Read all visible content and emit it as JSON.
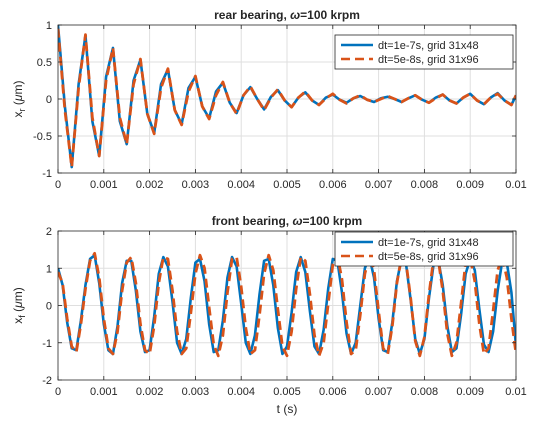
{
  "chart_data": [
    {
      "type": "line",
      "title_prefix": "rear bearing, ",
      "title_symbol": "ω",
      "title_suffix": "=100 krpm",
      "xlabel": "",
      "ylabel_main": "x",
      "ylabel_sub": "r",
      "ylabel_unit_open": " (",
      "ylabel_unit_mu": "μ",
      "ylabel_unit_rest": "m)",
      "xlim": [
        0,
        0.01
      ],
      "ylim": [
        -1,
        1
      ],
      "xticks": [
        0,
        0.001,
        0.002,
        0.003,
        0.004,
        0.005,
        0.006,
        0.007,
        0.008,
        0.009,
        0.01
      ],
      "xtick_labels": [
        "0",
        "0.001",
        "0.002",
        "0.003",
        "0.004",
        "0.005",
        "0.006",
        "0.007",
        "0.008",
        "0.009",
        "0.01"
      ],
      "yticks": [
        -1,
        -0.5,
        0,
        0.5,
        1
      ],
      "ytick_labels": [
        "-1",
        "-0.5",
        "0",
        "0.5",
        "1"
      ],
      "grid": true,
      "legend_position": "top-right",
      "series": [
        {
          "name": "dt=1e-7s, grid 31x48",
          "style": "solid",
          "color": "#0072BD",
          "x": [
            0,
            0.00015,
            0.0003,
            0.00045,
            0.0006,
            0.00075,
            0.0009,
            0.00105,
            0.0012,
            0.00135,
            0.0015,
            0.00165,
            0.0018,
            0.00195,
            0.0021,
            0.00225,
            0.0024,
            0.00255,
            0.0027,
            0.00285,
            0.003,
            0.00315,
            0.0033,
            0.00345,
            0.0036,
            0.00375,
            0.0039,
            0.00405,
            0.0042,
            0.00435,
            0.0045,
            0.00465,
            0.0048,
            0.00495,
            0.0051,
            0.00525,
            0.0054,
            0.00555,
            0.0057,
            0.00585,
            0.006,
            0.00615,
            0.0063,
            0.00645,
            0.0066,
            0.00675,
            0.0069,
            0.00705,
            0.0072,
            0.00735,
            0.0075,
            0.00765,
            0.0078,
            0.00795,
            0.0081,
            0.00825,
            0.0084,
            0.00855,
            0.0087,
            0.00885,
            0.009,
            0.00915,
            0.0093,
            0.00945,
            0.0096,
            0.00975,
            0.0099,
            0.01
          ],
          "y": [
            1.0,
            -0.1,
            -0.92,
            0.2,
            0.86,
            -0.3,
            -0.77,
            0.3,
            0.69,
            -0.3,
            -0.61,
            0.25,
            0.53,
            -0.2,
            -0.46,
            0.2,
            0.4,
            -0.15,
            -0.34,
            0.15,
            0.3,
            -0.1,
            -0.26,
            0.1,
            0.22,
            -0.05,
            -0.19,
            0.05,
            0.16,
            0.0,
            -0.14,
            0.03,
            0.12,
            -0.02,
            -0.11,
            0.02,
            0.09,
            -0.02,
            -0.08,
            0.02,
            0.06,
            -0.01,
            -0.05,
            0.01,
            0.04,
            -0.01,
            -0.04,
            0.01,
            0.03,
            0.0,
            -0.04,
            0.01,
            0.05,
            -0.01,
            -0.05,
            0.02,
            0.06,
            -0.02,
            -0.06,
            0.02,
            0.07,
            -0.02,
            -0.07,
            0.02,
            0.08,
            -0.02,
            -0.08,
            0.05
          ]
        },
        {
          "name": "dt=5e-8s, grid 31x96",
          "style": "dashed",
          "color": "#D95319",
          "x": [
            0,
            0.00015,
            0.0003,
            0.00045,
            0.0006,
            0.00075,
            0.0009,
            0.00105,
            0.0012,
            0.00135,
            0.0015,
            0.00165,
            0.0018,
            0.00195,
            0.0021,
            0.00225,
            0.0024,
            0.00255,
            0.0027,
            0.00285,
            0.003,
            0.00315,
            0.0033,
            0.00345,
            0.0036,
            0.00375,
            0.0039,
            0.00405,
            0.0042,
            0.00435,
            0.0045,
            0.00465,
            0.0048,
            0.00495,
            0.0051,
            0.00525,
            0.0054,
            0.00555,
            0.0057,
            0.00585,
            0.006,
            0.00615,
            0.0063,
            0.00645,
            0.0066,
            0.00675,
            0.0069,
            0.00705,
            0.0072,
            0.00735,
            0.0075,
            0.00765,
            0.0078,
            0.00795,
            0.0081,
            0.00825,
            0.0084,
            0.00855,
            0.0087,
            0.00885,
            0.009,
            0.00915,
            0.0093,
            0.00945,
            0.0096,
            0.00975,
            0.0099,
            0.01
          ],
          "y": [
            0.95,
            -0.15,
            -0.92,
            0.15,
            0.87,
            -0.25,
            -0.77,
            0.25,
            0.69,
            -0.25,
            -0.61,
            0.2,
            0.54,
            -0.2,
            -0.47,
            0.15,
            0.41,
            -0.15,
            -0.35,
            0.1,
            0.31,
            -0.1,
            -0.27,
            0.05,
            0.23,
            -0.05,
            -0.2,
            0.05,
            0.17,
            0.0,
            -0.15,
            0.02,
            0.13,
            -0.02,
            -0.11,
            0.02,
            0.1,
            -0.02,
            -0.08,
            0.01,
            0.07,
            -0.01,
            -0.06,
            0.01,
            0.05,
            -0.01,
            -0.04,
            0.0,
            0.04,
            0.0,
            -0.04,
            0.01,
            0.05,
            -0.01,
            -0.05,
            0.01,
            0.06,
            -0.02,
            -0.06,
            0.02,
            0.07,
            -0.02,
            -0.07,
            0.02,
            0.07,
            -0.02,
            -0.08,
            0.05
          ]
        }
      ]
    },
    {
      "type": "line",
      "title_prefix": "front bearing, ",
      "title_symbol": "ω",
      "title_suffix": "=100 krpm",
      "xlabel": "t (s)",
      "ylabel_main": "x",
      "ylabel_sub": "f",
      "ylabel_unit_open": " (",
      "ylabel_unit_mu": "μ",
      "ylabel_unit_rest": "m)",
      "xlim": [
        0,
        0.01
      ],
      "ylim": [
        -2,
        2
      ],
      "xticks": [
        0,
        0.001,
        0.002,
        0.003,
        0.004,
        0.005,
        0.006,
        0.007,
        0.008,
        0.009,
        0.01
      ],
      "xtick_labels": [
        "0",
        "0.001",
        "0.002",
        "0.003",
        "0.004",
        "0.005",
        "0.006",
        "0.007",
        "0.008",
        "0.009",
        "0.01"
      ],
      "yticks": [
        -2,
        -1,
        0,
        1,
        2
      ],
      "ytick_labels": [
        "-2",
        "-1",
        "0",
        "1",
        "2"
      ],
      "grid": true,
      "legend_position": "top-right",
      "series": [
        {
          "name": "dt=1e-7s, grid 31x48",
          "style": "solid",
          "color": "#0072BD",
          "x": [
            0,
            0.0001,
            0.0002,
            0.0003,
            0.0004,
            0.0005,
            0.0006,
            0.0007,
            0.0008,
            0.0009,
            0.001,
            0.0011,
            0.0012,
            0.0013,
            0.0014,
            0.0015,
            0.0016,
            0.0017,
            0.0018,
            0.0019,
            0.002,
            0.0021,
            0.0022,
            0.0023,
            0.0024,
            0.0025,
            0.0026,
            0.0027,
            0.0028,
            0.0029,
            0.003,
            0.0031,
            0.0032,
            0.0033,
            0.0034,
            0.0035,
            0.0036,
            0.0037,
            0.0038,
            0.0039,
            0.004,
            0.0041,
            0.0042,
            0.0043,
            0.0044,
            0.0045,
            0.0046,
            0.0047,
            0.0048,
            0.0049,
            0.005,
            0.0051,
            0.0052,
            0.0053,
            0.0054,
            0.0055,
            0.0056,
            0.0057,
            0.0058,
            0.0059,
            0.006,
            0.0061,
            0.0062,
            0.0063,
            0.0064,
            0.0065,
            0.0066,
            0.0067,
            0.0068,
            0.0069,
            0.007,
            0.0071,
            0.0072,
            0.0073,
            0.0074,
            0.0075,
            0.0076,
            0.0077,
            0.0078,
            0.0079,
            0.008,
            0.0081,
            0.0082,
            0.0083,
            0.0084,
            0.0085,
            0.0086,
            0.0087,
            0.0088,
            0.0089,
            0.009,
            0.0091,
            0.0092,
            0.0093,
            0.0094,
            0.0095,
            0.0096,
            0.0097,
            0.0098,
            0.0099,
            0.01
          ],
          "y": [
            1.0,
            0.55,
            -0.45,
            -1.15,
            -1.2,
            -0.4,
            0.55,
            1.25,
            1.35,
            0.6,
            -0.5,
            -1.2,
            -1.3,
            -0.55,
            0.6,
            1.2,
            1.2,
            0.4,
            -0.7,
            -1.25,
            -1.2,
            -0.3,
            0.85,
            1.3,
            1.05,
            0.1,
            -1.0,
            -1.3,
            -0.9,
            0.2,
            1.15,
            1.25,
            0.65,
            -0.5,
            -1.25,
            -1.2,
            -0.4,
            0.75,
            1.3,
            1.05,
            0.05,
            -1.0,
            -1.3,
            -0.8,
            0.3,
            1.2,
            1.25,
            0.55,
            -0.6,
            -1.3,
            -1.1,
            -0.2,
            0.9,
            1.3,
            0.9,
            -0.15,
            -1.1,
            -1.3,
            -0.65,
            0.45,
            1.25,
            1.2,
            0.35,
            -0.75,
            -1.3,
            -1.0,
            0.0,
            1.0,
            1.3,
            0.75,
            -0.35,
            -1.2,
            -1.25,
            -0.45,
            0.65,
            1.25,
            1.1,
            0.15,
            -0.9,
            -1.3,
            -0.9,
            0.2,
            1.1,
            1.25,
            0.55,
            -0.55,
            -1.25,
            -1.15,
            -0.25,
            0.85,
            1.25,
            0.95,
            -0.1,
            -1.05,
            -1.25,
            -0.7,
            0.4,
            1.2,
            1.15,
            0.35,
            -1.1
          ]
        },
        {
          "name": "dt=5e-8s, grid 31x96",
          "style": "dashed",
          "color": "#D95319",
          "x": [
            0,
            0.0001,
            0.0002,
            0.0003,
            0.0004,
            0.0005,
            0.0006,
            0.0007,
            0.0008,
            0.0009,
            0.001,
            0.0011,
            0.0012,
            0.0013,
            0.0014,
            0.0015,
            0.0016,
            0.0017,
            0.0018,
            0.0019,
            0.002,
            0.0021,
            0.0022,
            0.0023,
            0.0024,
            0.0025,
            0.0026,
            0.0027,
            0.0028,
            0.0029,
            0.003,
            0.0031,
            0.0032,
            0.0033,
            0.0034,
            0.0035,
            0.0036,
            0.0037,
            0.0038,
            0.0039,
            0.004,
            0.0041,
            0.0042,
            0.0043,
            0.0044,
            0.0045,
            0.0046,
            0.0047,
            0.0048,
            0.0049,
            0.005,
            0.0051,
            0.0052,
            0.0053,
            0.0054,
            0.0055,
            0.0056,
            0.0057,
            0.0058,
            0.0059,
            0.006,
            0.0061,
            0.0062,
            0.0063,
            0.0064,
            0.0065,
            0.0066,
            0.0067,
            0.0068,
            0.0069,
            0.007,
            0.0071,
            0.0072,
            0.0073,
            0.0074,
            0.0075,
            0.0076,
            0.0077,
            0.0078,
            0.0079,
            0.008,
            0.0081,
            0.0082,
            0.0083,
            0.0084,
            0.0085,
            0.0086,
            0.0087,
            0.0088,
            0.0089,
            0.009,
            0.0091,
            0.0092,
            0.0093,
            0.0094,
            0.0095,
            0.0096,
            0.0097,
            0.0098,
            0.0099,
            0.01
          ],
          "y": [
            0.9,
            0.6,
            -0.35,
            -1.1,
            -1.25,
            -0.5,
            0.45,
            1.2,
            1.4,
            0.75,
            -0.35,
            -1.15,
            -1.3,
            -0.7,
            0.4,
            1.15,
            1.3,
            0.6,
            -0.5,
            -1.2,
            -1.3,
            -0.55,
            0.6,
            1.3,
            1.25,
            0.4,
            -0.7,
            -1.3,
            -1.15,
            -0.2,
            0.85,
            1.35,
            1.0,
            -0.05,
            -1.05,
            -1.35,
            -0.8,
            0.35,
            1.25,
            1.3,
            0.5,
            -0.6,
            -1.3,
            -1.2,
            -0.25,
            0.85,
            1.35,
            0.95,
            -0.1,
            -1.1,
            -1.35,
            -0.7,
            0.45,
            1.3,
            1.2,
            0.3,
            -0.8,
            -1.35,
            -1.0,
            0.05,
            1.1,
            1.35,
            0.7,
            -0.45,
            -1.3,
            -1.2,
            -0.25,
            0.85,
            1.35,
            0.95,
            -0.15,
            -1.15,
            -1.3,
            -0.55,
            0.6,
            1.3,
            1.15,
            0.2,
            -0.95,
            -1.35,
            -0.85,
            0.3,
            1.25,
            1.25,
            0.4,
            -0.75,
            -1.35,
            -1.0,
            0.05,
            1.15,
            1.3,
            0.65,
            -0.5,
            -1.3,
            -1.15,
            -0.15,
            0.95,
            1.3,
            0.75,
            -0.35,
            -1.3
          ]
        }
      ]
    }
  ]
}
